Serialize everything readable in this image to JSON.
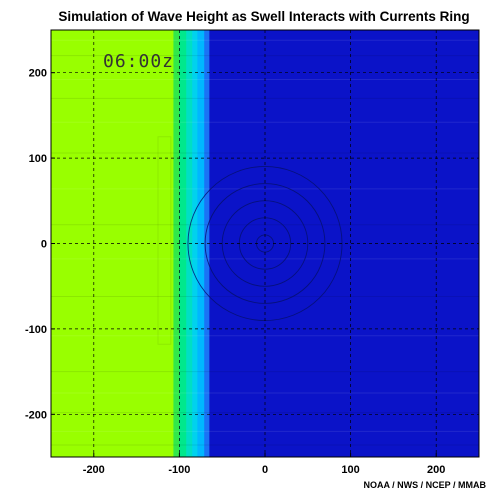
{
  "chart_data": {
    "type": "heatmap",
    "title": "Simulation of Wave Height as Swell Interacts with Currents Ring",
    "time_label": "06:00z",
    "credit": "NOAA / NWS / NCEP / MMAB",
    "xlabel": "",
    "ylabel": "",
    "xlim": [
      -250,
      250
    ],
    "ylim": [
      -250,
      250
    ],
    "x_ticks": [
      -200,
      -100,
      0,
      100,
      200
    ],
    "y_ticks": [
      -200,
      -100,
      0,
      100,
      200
    ],
    "grid": true,
    "grid_style": "dashed",
    "bands": [
      {
        "x_from": -250,
        "x_to": -107,
        "color": "#99ff00"
      },
      {
        "x_from": -107,
        "x_to": -100,
        "color": "#33e84a"
      },
      {
        "x_from": -100,
        "x_to": -92,
        "color": "#00e88c"
      },
      {
        "x_from": -92,
        "x_to": -85,
        "color": "#00dfc4"
      },
      {
        "x_from": -85,
        "x_to": -79,
        "color": "#00d2ee"
      },
      {
        "x_from": -79,
        "x_to": -71,
        "color": "#00b7ff"
      },
      {
        "x_from": -71,
        "x_to": -65,
        "color": "#1a73f5"
      },
      {
        "x_from": -65,
        "x_to": 250,
        "color": "#0b13c8"
      }
    ],
    "ring": {
      "center": [
        0,
        0
      ],
      "radii": [
        10,
        30,
        50,
        70,
        90
      ],
      "color": "#061070"
    }
  }
}
